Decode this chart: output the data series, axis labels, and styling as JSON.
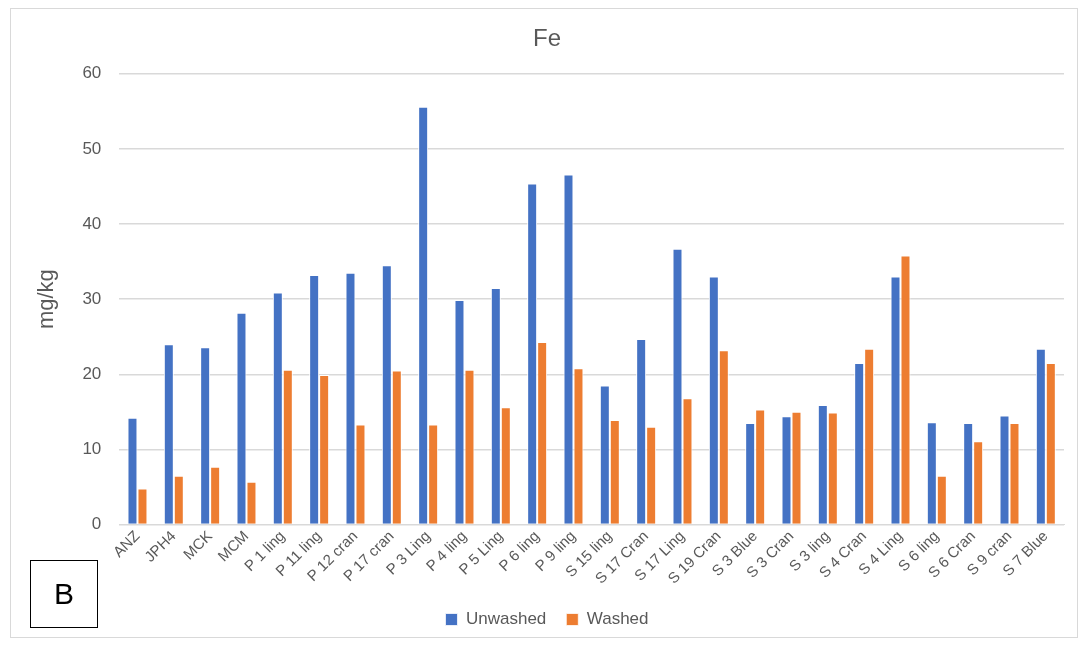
{
  "chart_data": {
    "type": "bar",
    "title": "Fe",
    "ylabel": "mg/kg",
    "categories": [
      "ANZ",
      "JPH4",
      "MCK",
      "MCM",
      "P 1 ling",
      "P 11 ling",
      "P 12 cran",
      "P 17 cran",
      "P 3 Ling",
      "P 4 ling",
      "P 5 Ling",
      "P 6 ling",
      "P 9 ling",
      "S 15 ling",
      "S 17 Cran",
      "S 17 Ling",
      "S 19 Cran",
      "S 3 Blue",
      "S 3 Cran",
      "S 3 ling",
      "S 4 Cran",
      "S 4 Ling",
      "S 6 ling",
      "S 6 Cran",
      "S 9 cran",
      "S 7 Blue"
    ],
    "series": [
      {
        "name": "Unwashed",
        "color": "#4472c4",
        "values": [
          14.2,
          24.0,
          23.6,
          28.2,
          30.9,
          33.2,
          33.5,
          34.5,
          55.6,
          29.9,
          31.5,
          45.4,
          46.6,
          18.5,
          24.7,
          36.7,
          33.0,
          13.5,
          14.4,
          15.9,
          21.5,
          33.0,
          13.6,
          13.5,
          14.5,
          23.4
        ]
      },
      {
        "name": "Washed",
        "color": "#ed7d31",
        "values": [
          4.8,
          6.5,
          7.7,
          5.7,
          20.6,
          19.9,
          13.3,
          20.5,
          13.3,
          20.6,
          15.6,
          24.3,
          20.8,
          13.9,
          13.0,
          16.8,
          23.2,
          15.3,
          15.0,
          14.9,
          23.4,
          35.8,
          6.5,
          11.1,
          13.5,
          21.5
        ]
      }
    ],
    "ylim": [
      0,
      60
    ],
    "yticks": [
      0,
      10,
      20,
      30,
      40,
      50,
      60
    ],
    "grid": "y",
    "legend": "bottom",
    "annotations": [
      "B"
    ]
  }
}
